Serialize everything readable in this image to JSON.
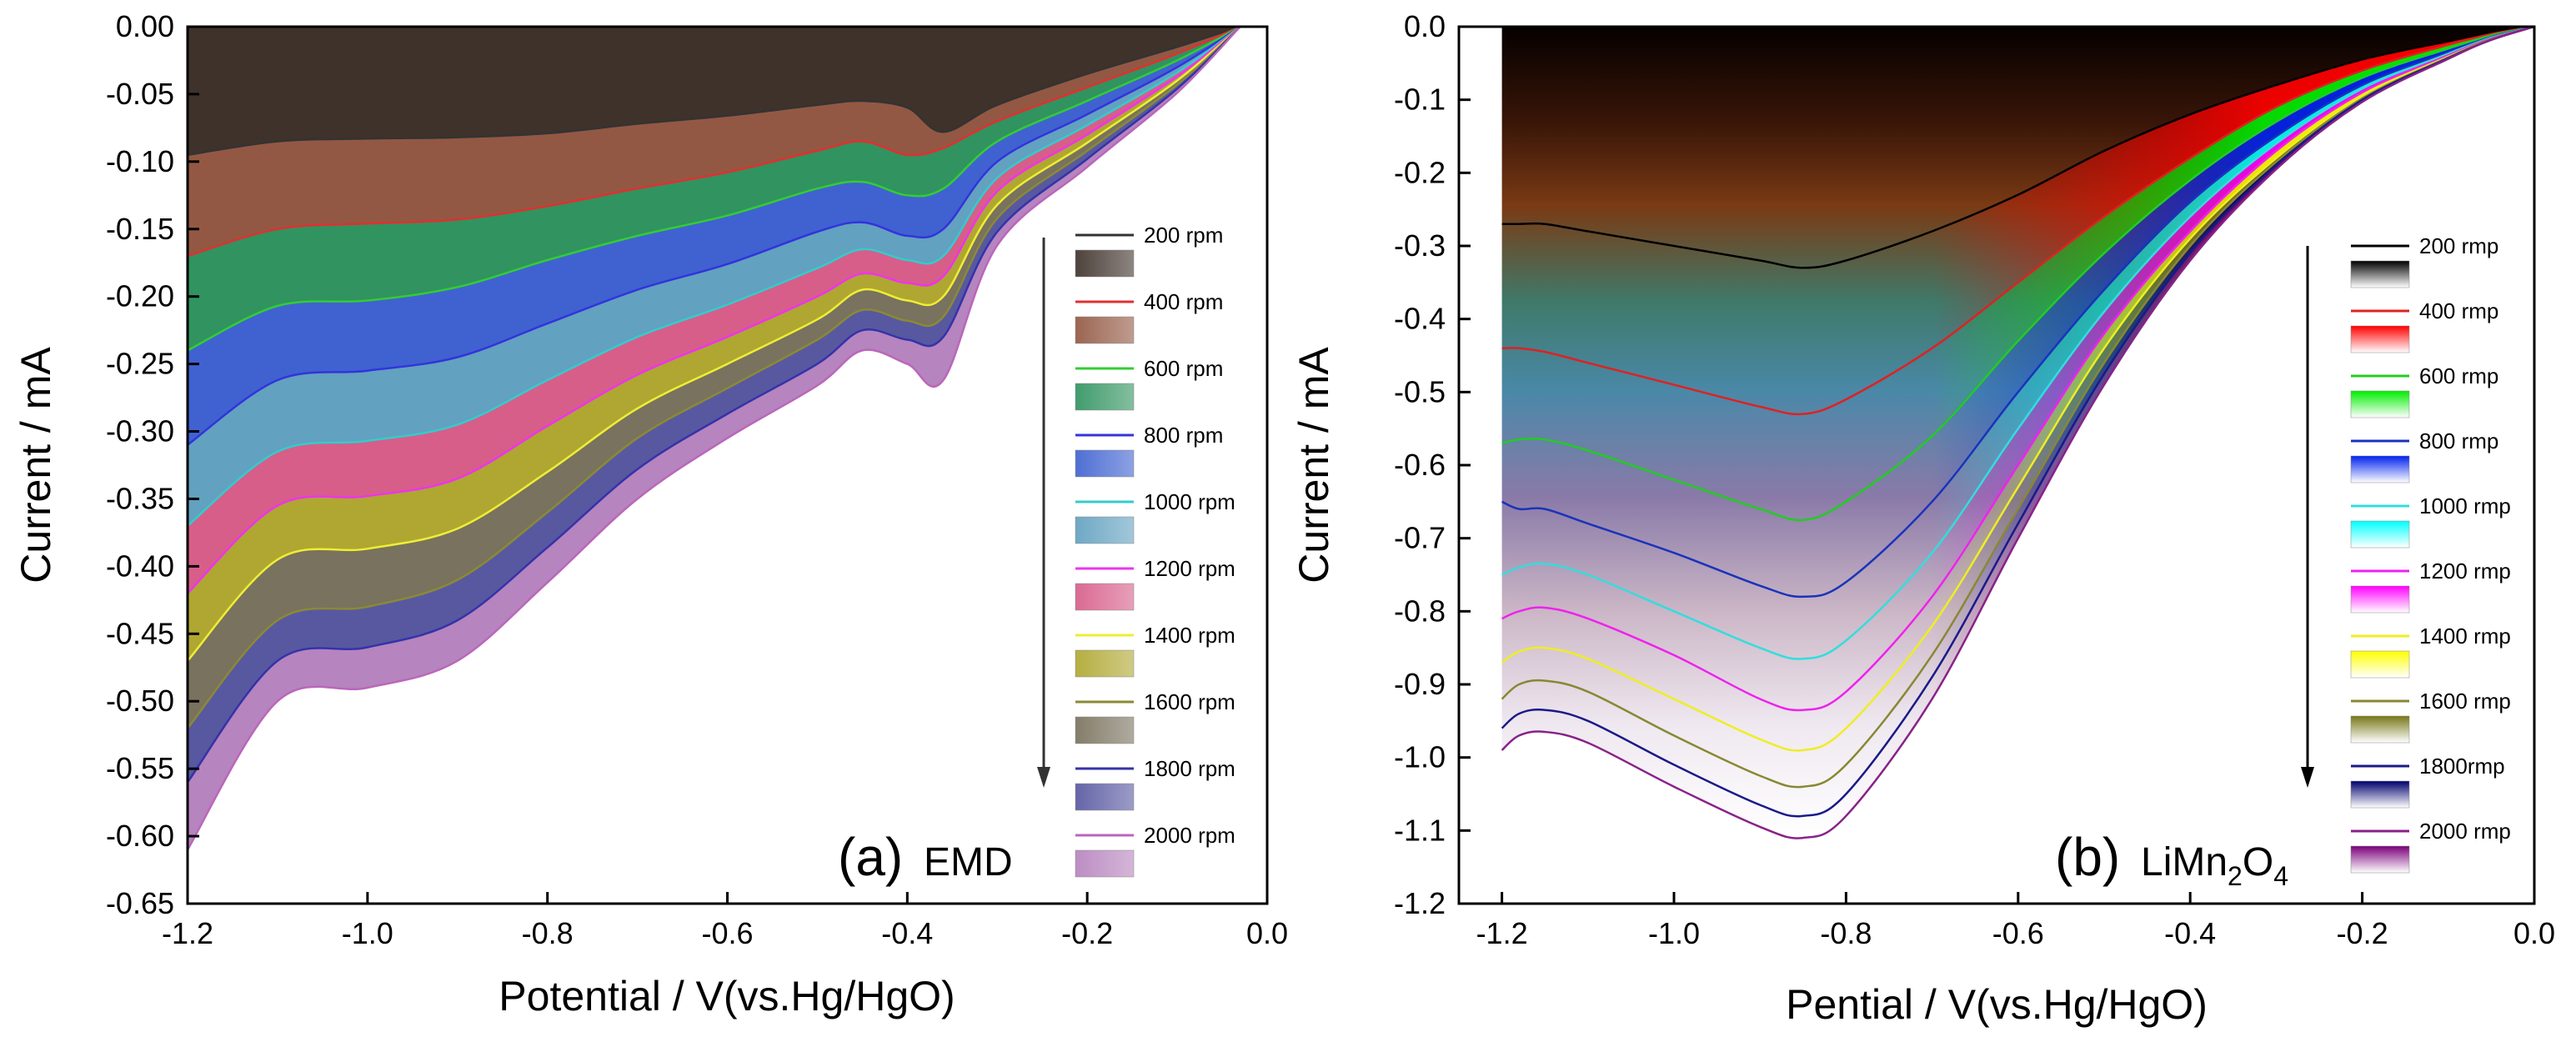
{
  "chart_data": [
    {
      "type": "area",
      "panel_label": "(a)",
      "sample_label": "EMD",
      "xlabel": "Potential / V(vs.Hg/HgO)",
      "ylabel": "Current / mA",
      "xlim": [
        -1.2,
        0.0
      ],
      "ylim": [
        -0.65,
        0.0
      ],
      "xticks": [
        "-1.2",
        "-1.0",
        "-0.8",
        "-0.6",
        "-0.4",
        "-0.2",
        "0.0"
      ],
      "yticks": [
        "0.00",
        "-0.05",
        "-0.10",
        "-0.15",
        "-0.20",
        "-0.25",
        "-0.30",
        "-0.35",
        "-0.40",
        "-0.45",
        "-0.50",
        "-0.55",
        "-0.60",
        "-0.65"
      ],
      "legend_placement": "right",
      "x": [
        -1.2,
        -1.1,
        -1.0,
        -0.9,
        -0.8,
        -0.7,
        -0.6,
        -0.5,
        -0.45,
        -0.4,
        -0.36,
        -0.3,
        -0.2,
        -0.1,
        -0.03
      ],
      "series": [
        {
          "name": "200 rpm",
          "color": "#333333",
          "fill": "#2f2119",
          "values": [
            -0.095,
            -0.085,
            -0.083,
            -0.082,
            -0.079,
            -0.072,
            -0.066,
            -0.058,
            -0.055,
            -0.06,
            -0.078,
            -0.058,
            -0.035,
            -0.015,
            0.0
          ]
        },
        {
          "name": "400 rpm",
          "color": "#e03030",
          "fill": "#8a4a33",
          "values": [
            -0.17,
            -0.15,
            -0.146,
            -0.143,
            -0.133,
            -0.12,
            -0.108,
            -0.092,
            -0.085,
            -0.095,
            -0.09,
            -0.07,
            -0.045,
            -0.02,
            0.0
          ]
        },
        {
          "name": "600 rpm",
          "color": "#33cc33",
          "fill": "#1f8a52",
          "values": [
            -0.24,
            -0.207,
            -0.203,
            -0.193,
            -0.173,
            -0.155,
            -0.14,
            -0.12,
            -0.115,
            -0.125,
            -0.12,
            -0.085,
            -0.055,
            -0.025,
            0.0
          ]
        },
        {
          "name": "800 rpm",
          "color": "#3333dd",
          "fill": "#2f55cc",
          "values": [
            -0.31,
            -0.262,
            -0.255,
            -0.245,
            -0.22,
            -0.195,
            -0.176,
            -0.152,
            -0.145,
            -0.155,
            -0.15,
            -0.1,
            -0.065,
            -0.03,
            0.0
          ]
        },
        {
          "name": "1000 rpm",
          "color": "#33cccc",
          "fill": "#5599bb",
          "values": [
            -0.37,
            -0.315,
            -0.307,
            -0.295,
            -0.262,
            -0.23,
            -0.206,
            -0.179,
            -0.165,
            -0.173,
            -0.17,
            -0.112,
            -0.073,
            -0.034,
            0.0
          ]
        },
        {
          "name": "1200 rpm",
          "color": "#ee33ee",
          "fill": "#d4507f",
          "values": [
            -0.42,
            -0.355,
            -0.348,
            -0.335,
            -0.296,
            -0.258,
            -0.23,
            -0.2,
            -0.183,
            -0.19,
            -0.185,
            -0.122,
            -0.08,
            -0.037,
            0.0
          ]
        },
        {
          "name": "1400 rpm",
          "color": "#eeee33",
          "fill": "#a8a020",
          "values": [
            -0.47,
            -0.395,
            -0.387,
            -0.372,
            -0.33,
            -0.283,
            -0.25,
            -0.217,
            -0.195,
            -0.203,
            -0.2,
            -0.132,
            -0.086,
            -0.04,
            0.0
          ]
        },
        {
          "name": "1600 rpm",
          "color": "#8a8a33",
          "fill": "#6e6650",
          "values": [
            -0.52,
            -0.44,
            -0.43,
            -0.41,
            -0.36,
            -0.305,
            -0.268,
            -0.232,
            -0.21,
            -0.218,
            -0.215,
            -0.142,
            -0.092,
            -0.043,
            0.0
          ]
        },
        {
          "name": "1800 rpm",
          "color": "#3333aa",
          "fill": "#4a4a99",
          "values": [
            -0.56,
            -0.47,
            -0.46,
            -0.44,
            -0.386,
            -0.328,
            -0.287,
            -0.25,
            -0.225,
            -0.232,
            -0.23,
            -0.152,
            -0.098,
            -0.046,
            0.0
          ]
        },
        {
          "name": "2000 rpm",
          "color": "#bb66bb",
          "fill": "#b07ab8",
          "values": [
            -0.61,
            -0.5,
            -0.49,
            -0.47,
            -0.412,
            -0.35,
            -0.305,
            -0.266,
            -0.24,
            -0.25,
            -0.262,
            -0.162,
            -0.104,
            -0.049,
            0.0
          ]
        }
      ]
    },
    {
      "type": "line",
      "panel_label": "(b)",
      "sample_label": "LiMn",
      "sample_sub1": "2",
      "sample_mid": "O",
      "sample_sub2": "4",
      "xlabel": "Pential / V(vs.Hg/HgO)",
      "ylabel": "Current / mA",
      "xlim": [
        -1.25,
        0.0
      ],
      "ylim": [
        -1.2,
        0.0
      ],
      "xticks": [
        "-1.2",
        "-1.0",
        "-0.8",
        "-0.6",
        "-0.4",
        "-0.2",
        "0.0"
      ],
      "yticks": [
        "0.0",
        "-0.1",
        "-0.2",
        "-0.3",
        "-0.4",
        "-0.5",
        "-0.6",
        "-0.7",
        "-0.8",
        "-0.9",
        "-1.0",
        "-1.1",
        "-1.2"
      ],
      "legend_placement": "right",
      "x": [
        -1.2,
        -1.18,
        -1.15,
        -1.1,
        -1.0,
        -0.9,
        -0.85,
        -0.8,
        -0.7,
        -0.6,
        -0.5,
        -0.4,
        -0.3,
        -0.2,
        -0.1,
        -0.05,
        0.0
      ],
      "series": [
        {
          "name": "200 rmp",
          "color": "#000000",
          "fill_top": "#000000",
          "values": [
            -0.27,
            -0.27,
            -0.27,
            -0.28,
            -0.3,
            -0.32,
            -0.33,
            -0.32,
            -0.28,
            -0.23,
            -0.17,
            -0.12,
            -0.08,
            -0.045,
            -0.02,
            -0.008,
            0.0
          ]
        },
        {
          "name": "400 rmp",
          "color": "#dd2222",
          "fill_top": "#ff0000",
          "values": [
            -0.44,
            -0.44,
            -0.445,
            -0.46,
            -0.49,
            -0.52,
            -0.53,
            -0.51,
            -0.44,
            -0.35,
            -0.26,
            -0.18,
            -0.11,
            -0.06,
            -0.025,
            -0.01,
            0.0
          ]
        },
        {
          "name": "600 rmp",
          "color": "#22cc22",
          "fill_top": "#00ee00",
          "values": [
            -0.57,
            -0.565,
            -0.565,
            -0.58,
            -0.62,
            -0.66,
            -0.675,
            -0.65,
            -0.56,
            -0.43,
            -0.31,
            -0.21,
            -0.13,
            -0.07,
            -0.03,
            -0.012,
            0.0
          ]
        },
        {
          "name": "800 rmp",
          "color": "#1a33bb",
          "fill_top": "#0022ee",
          "values": [
            -0.65,
            -0.66,
            -0.66,
            -0.68,
            -0.72,
            -0.765,
            -0.78,
            -0.76,
            -0.65,
            -0.5,
            -0.36,
            -0.24,
            -0.15,
            -0.08,
            -0.035,
            -0.014,
            0.0
          ]
        },
        {
          "name": "1000 rmp",
          "color": "#33dddd",
          "fill_top": "#00ffff",
          "values": [
            -0.75,
            -0.74,
            -0.735,
            -0.75,
            -0.8,
            -0.85,
            -0.865,
            -0.84,
            -0.72,
            -0.55,
            -0.39,
            -0.26,
            -0.16,
            -0.085,
            -0.037,
            -0.015,
            0.0
          ]
        },
        {
          "name": "1200 rmp",
          "color": "#ee22ee",
          "fill_top": "#ff00ff",
          "values": [
            -0.81,
            -0.8,
            -0.795,
            -0.81,
            -0.86,
            -0.92,
            -0.935,
            -0.91,
            -0.78,
            -0.6,
            -0.42,
            -0.28,
            -0.17,
            -0.09,
            -0.039,
            -0.016,
            0.0
          ]
        },
        {
          "name": "1400 rmp",
          "color": "#eeee22",
          "fill_top": "#ffff00",
          "values": [
            -0.87,
            -0.855,
            -0.85,
            -0.865,
            -0.92,
            -0.975,
            -0.99,
            -0.96,
            -0.82,
            -0.63,
            -0.44,
            -0.29,
            -0.18,
            -0.095,
            -0.041,
            -0.017,
            0.0
          ]
        },
        {
          "name": "1600 rmp",
          "color": "#888833",
          "fill_top": "#77771a",
          "values": [
            -0.92,
            -0.9,
            -0.895,
            -0.91,
            -0.97,
            -1.025,
            -1.04,
            -1.01,
            -0.86,
            -0.66,
            -0.46,
            -0.3,
            -0.185,
            -0.098,
            -0.042,
            -0.017,
            0.0
          ]
        },
        {
          "name": "1800rmp",
          "color": "#1a1a88",
          "fill_top": "#00006e",
          "values": [
            -0.96,
            -0.94,
            -0.935,
            -0.95,
            -1.01,
            -1.065,
            -1.08,
            -1.05,
            -0.89,
            -0.68,
            -0.475,
            -0.31,
            -0.19,
            -0.1,
            -0.043,
            -0.018,
            0.0
          ]
        },
        {
          "name": "2000 rmp",
          "color": "#882288",
          "fill_top": "#7a007a",
          "values": [
            -0.99,
            -0.97,
            -0.965,
            -0.98,
            -1.04,
            -1.095,
            -1.11,
            -1.08,
            -0.92,
            -0.7,
            -0.49,
            -0.32,
            -0.195,
            -0.103,
            -0.044,
            -0.018,
            0.0
          ]
        }
      ]
    }
  ]
}
